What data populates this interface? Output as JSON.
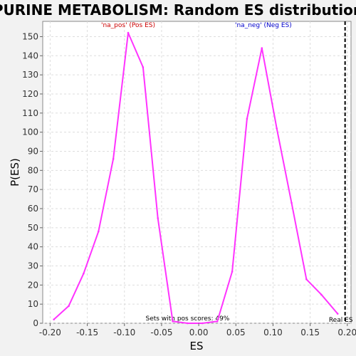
{
  "chart_data": {
    "type": "line",
    "title": "PURINE METABOLISM: Random ES distribution",
    "xlabel": "ES",
    "ylabel": "P(ES)",
    "xlim": [
      -0.21,
      0.205
    ],
    "ylim": [
      0,
      158
    ],
    "x_ticks": [
      -0.2,
      -0.15,
      -0.1,
      -0.05,
      0.0,
      0.05,
      0.1,
      0.15,
      0.2
    ],
    "x_tick_labels": [
      "-0.20",
      "-0.15",
      "-0.10",
      "-0.05",
      "0.00",
      "0.05",
      "0.10",
      "0.15",
      "0.20"
    ],
    "y_ticks": [
      0,
      10,
      20,
      30,
      40,
      50,
      60,
      70,
      80,
      90,
      100,
      110,
      120,
      130,
      140,
      150
    ],
    "y_tick_labels": [
      "0",
      "10",
      "20",
      "30",
      "40",
      "50",
      "60",
      "70",
      "80",
      "90",
      "100",
      "110",
      "120",
      "130",
      "140",
      "150"
    ],
    "grid": true,
    "series": [
      {
        "color": "#ff33ff",
        "x": [
          -0.195,
          -0.175,
          -0.155,
          -0.135,
          -0.115,
          -0.095,
          -0.075,
          -0.055,
          -0.035,
          -0.015,
          0.005,
          0.025,
          0.045,
          0.065,
          0.085,
          0.105,
          0.125,
          0.145,
          0.165,
          0.187
        ],
        "y": [
          2,
          9,
          26,
          48,
          86,
          152,
          134,
          55,
          1,
          0,
          0,
          1,
          27,
          107,
          144,
          102,
          63,
          23,
          15,
          5
        ]
      }
    ],
    "real_es": {
      "x": 0.197,
      "label": "Real ES",
      "color": "#000000",
      "style": "dashed"
    },
    "annotations": [
      {
        "text": "'na_pos' (Pos ES)",
        "color": "#cc0000",
        "x": -0.095,
        "y": 155,
        "anchor": "middle"
      },
      {
        "text": "'na_neg' (Neg ES)",
        "color": "#0000cc",
        "x": 0.087,
        "y": 155,
        "anchor": "middle"
      },
      {
        "text": "Sets with pos scores: 49%",
        "color": "#000000",
        "x": -0.015,
        "y": 1.5,
        "anchor": "middle"
      }
    ]
  }
}
